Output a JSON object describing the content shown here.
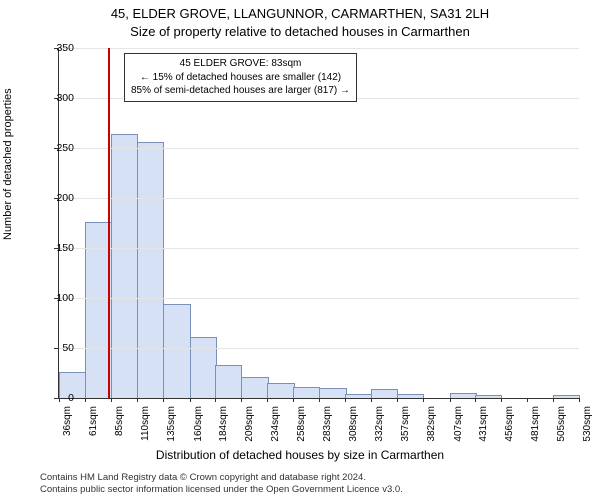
{
  "title": "45, ELDER GROVE, LLANGUNNOR, CARMARTHEN, SA31 2LH",
  "subtitle": "Size of property relative to detached houses in Carmarthen",
  "ylabel": "Number of detached properties",
  "xlabel": "Distribution of detached houses by size in Carmarthen",
  "credits_line1": "Contains HM Land Registry data © Crown copyright and database right 2024.",
  "credits_line2": "Contains public sector information licensed under the Open Government Licence v3.0.",
  "chart": {
    "type": "histogram",
    "ylim": [
      0,
      350
    ],
    "ytick_step": 50,
    "xlim": [
      36,
      530
    ],
    "xtick_labels": [
      "36sqm",
      "61sqm",
      "85sqm",
      "110sqm",
      "135sqm",
      "160sqm",
      "184sqm",
      "209sqm",
      "234sqm",
      "258sqm",
      "283sqm",
      "308sqm",
      "332sqm",
      "357sqm",
      "382sqm",
      "407sqm",
      "431sqm",
      "456sqm",
      "481sqm",
      "505sqm",
      "530sqm"
    ],
    "xtick_values": [
      36,
      61,
      85,
      110,
      135,
      160,
      184,
      209,
      234,
      258,
      283,
      308,
      332,
      357,
      382,
      407,
      431,
      456,
      481,
      505,
      530
    ],
    "bin_width": 24.7,
    "bins": [
      {
        "x": 36,
        "count": 25
      },
      {
        "x": 61,
        "count": 175
      },
      {
        "x": 85,
        "count": 263
      },
      {
        "x": 110,
        "count": 255
      },
      {
        "x": 135,
        "count": 93
      },
      {
        "x": 160,
        "count": 60
      },
      {
        "x": 184,
        "count": 32
      },
      {
        "x": 209,
        "count": 20
      },
      {
        "x": 234,
        "count": 14
      },
      {
        "x": 258,
        "count": 10
      },
      {
        "x": 283,
        "count": 9
      },
      {
        "x": 308,
        "count": 3
      },
      {
        "x": 332,
        "count": 8
      },
      {
        "x": 357,
        "count": 3
      },
      {
        "x": 382,
        "count": 0
      },
      {
        "x": 407,
        "count": 4
      },
      {
        "x": 431,
        "count": 2
      },
      {
        "x": 456,
        "count": 0
      },
      {
        "x": 481,
        "count": 0
      },
      {
        "x": 505,
        "count": 2
      }
    ],
    "bar_fill": "#d6e1f5",
    "bar_stroke": "#7a90b8",
    "grid_color": "#e5e5e5",
    "axis_color": "#333333",
    "background_color": "#ffffff",
    "marker": {
      "x_value": 83,
      "color": "#cc0000",
      "width": 2
    },
    "annotation": {
      "line1": "45 ELDER GROVE: 83sqm",
      "line2": "← 15% of detached houses are smaller (142)",
      "line3": "85% of semi-detached houses are larger (817) →",
      "border_color": "#333333",
      "bg_color": "#ffffff",
      "fontsize": 10
    },
    "title_fontsize": 13,
    "label_fontsize": 11,
    "tick_fontsize": 10
  }
}
